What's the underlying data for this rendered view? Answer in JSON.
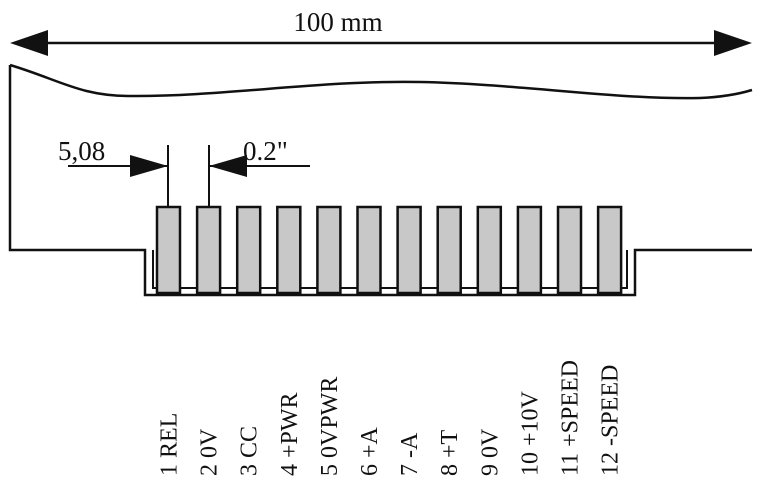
{
  "dimensions": {
    "overall_width": "100 mm",
    "pitch_metric": "5,08",
    "pitch_imperial": "0.2\""
  },
  "connector": {
    "pin_count": 12,
    "pin_fill_color": "#c8c8c8",
    "line_color": "#111111"
  },
  "pins": [
    {
      "label": "1 REL"
    },
    {
      "label": "2 0V"
    },
    {
      "label": "3 CC"
    },
    {
      "label": "4 +PWR"
    },
    {
      "label": "5 0VPWR"
    },
    {
      "label": "6 +A"
    },
    {
      "label": "7 -A"
    },
    {
      "label": "8 +T"
    },
    {
      "label": "9 0V"
    },
    {
      "label": "10 +10V"
    },
    {
      "label": "11 +SPEED"
    },
    {
      "label": "12 -SPEED"
    }
  ]
}
